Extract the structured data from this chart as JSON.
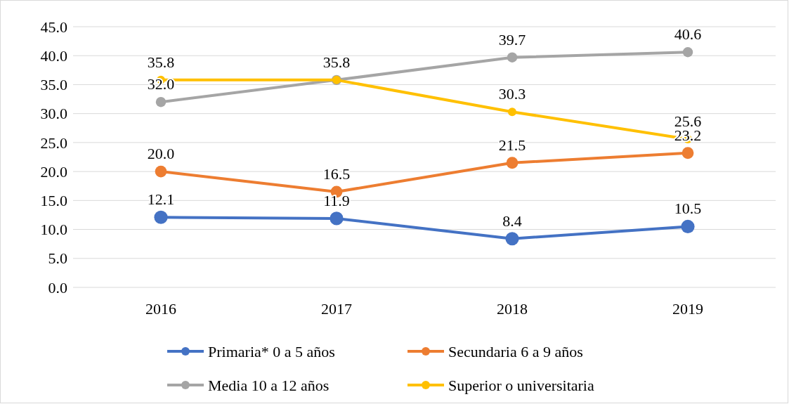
{
  "chart_data": {
    "type": "line",
    "categories": [
      "2016",
      "2017",
      "2018",
      "2019"
    ],
    "series": [
      {
        "name": "Primaria*  0 a 5 años",
        "color": "#4472c4",
        "values": [
          12.1,
          11.9,
          8.4,
          10.5
        ],
        "value_labels": [
          "12.1",
          "11.9",
          "8.4",
          "10.5"
        ]
      },
      {
        "name": "Secundaria 6 a 9 años",
        "color": "#ed7d31",
        "values": [
          20.0,
          16.5,
          21.5,
          23.2
        ],
        "value_labels": [
          "20.0",
          "16.5",
          "21.5",
          "23.2"
        ]
      },
      {
        "name": "Media 10 a 12 años",
        "color": "#a5a5a5",
        "values": [
          32.0,
          35.8,
          39.7,
          40.6
        ],
        "value_labels": [
          "32.0",
          null,
          "39.7",
          "40.6"
        ]
      },
      {
        "name": "Superior o universitaria",
        "color": "#ffc000",
        "values": [
          35.8,
          35.8,
          30.3,
          25.6
        ],
        "value_labels": [
          "35.8",
          "35.8",
          "30.3",
          "25.6"
        ]
      }
    ],
    "ylim": [
      0,
      45
    ],
    "yticks": [
      {
        "value": 0,
        "label": "0.0"
      },
      {
        "value": 5,
        "label": "5.0"
      },
      {
        "value": 10,
        "label": "10.0"
      },
      {
        "value": 15,
        "label": "15.0"
      },
      {
        "value": 20,
        "label": "20.0"
      },
      {
        "value": 25,
        "label": "25.0"
      },
      {
        "value": 30,
        "label": "30.0"
      },
      {
        "value": 35,
        "label": "35.0"
      },
      {
        "value": 40,
        "label": "40.0"
      },
      {
        "value": 45,
        "label": "45.0"
      }
    ],
    "grid": "y",
    "legend": "bottom",
    "marker": "circle",
    "line_style": "solid"
  }
}
